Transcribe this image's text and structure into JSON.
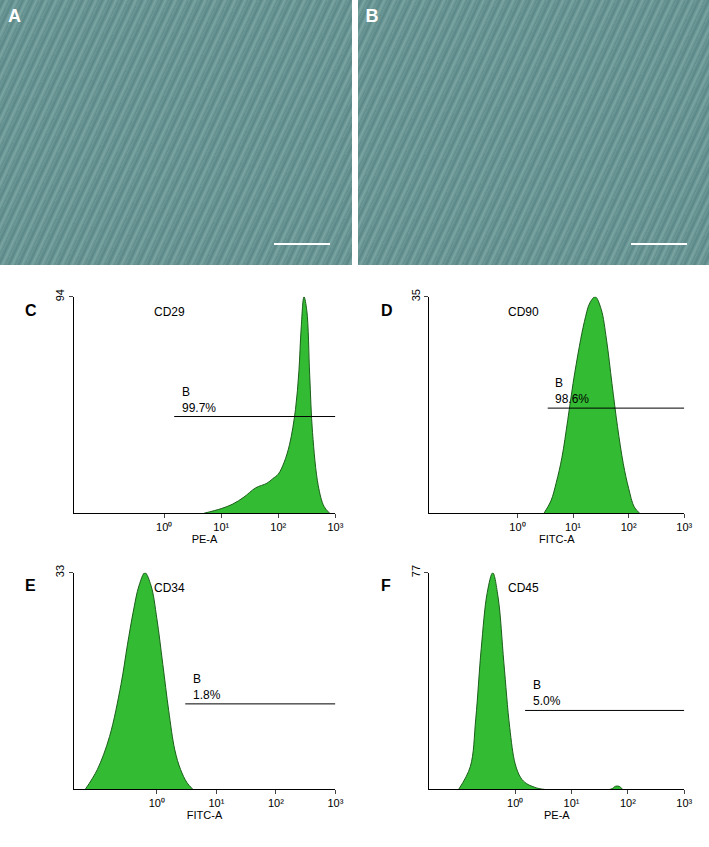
{
  "photos": [
    {
      "panel": "A"
    },
    {
      "panel": "B"
    }
  ],
  "chart_data": [
    {
      "type": "area",
      "panel": "C",
      "title": "CD29",
      "x_label": "PE-A",
      "color": "#33bb33",
      "x": [
        5,
        10,
        16,
        25,
        40,
        63,
        80,
        100,
        126,
        158,
        200,
        230,
        251,
        282,
        316,
        355,
        398,
        501,
        631,
        794
      ],
      "values": [
        0,
        2,
        4,
        7,
        11,
        13,
        15,
        17,
        22,
        30,
        45,
        62,
        80,
        94,
        88,
        60,
        35,
        12,
        3,
        0
      ],
      "xlim": [
        0.026,
        1000
      ],
      "ylim": [
        0,
        94
      ],
      "log": "x",
      "xticks": [
        {
          "value": 1,
          "label": "10⁰"
        },
        {
          "value": 10,
          "label": "10¹"
        },
        {
          "value": 100,
          "label": "10²"
        },
        {
          "value": 1000,
          "label": "10³"
        }
      ],
      "yticks": [
        94
      ],
      "gate": {
        "name": "B",
        "label": "99.7%",
        "x": [
          1.5,
          1000
        ],
        "y": 42
      }
    },
    {
      "type": "area",
      "panel": "D",
      "title": "CD90",
      "x_label": "FITC-A",
      "color": "#33bb33",
      "x": [
        3,
        4,
        5,
        6.3,
        8,
        10,
        13,
        16,
        20,
        25,
        32,
        40,
        50,
        63,
        80,
        100,
        126,
        158
      ],
      "values": [
        0,
        2,
        5,
        9,
        15,
        21,
        27,
        31,
        34,
        35,
        33,
        28,
        21,
        14,
        8,
        4,
        1,
        0
      ],
      "xlim": [
        0.026,
        1000
      ],
      "ylim": [
        0,
        35
      ],
      "log": "x",
      "xticks": [
        {
          "value": 1,
          "label": "10⁰"
        },
        {
          "value": 10,
          "label": "10¹"
        },
        {
          "value": 100,
          "label": "10²"
        },
        {
          "value": 1000,
          "label": "10³"
        }
      ],
      "yticks": [
        35
      ],
      "gate": {
        "name": "B",
        "label": "98.6%",
        "x": [
          3.5,
          1000
        ],
        "y": 17
      }
    },
    {
      "type": "area",
      "panel": "E",
      "title": "CD34",
      "x_label": "FITC-A",
      "color": "#33bb33",
      "x": [
        0.063,
        0.1,
        0.16,
        0.25,
        0.32,
        0.4,
        0.5,
        0.63,
        0.8,
        1,
        1.26,
        1.58,
        2,
        2.5,
        3.2,
        4
      ],
      "values": [
        0,
        3,
        8,
        16,
        22,
        27,
        31,
        33,
        31,
        26,
        19,
        12,
        6,
        3,
        1,
        0
      ],
      "xlim": [
        0.04,
        1000
      ],
      "ylim": [
        0,
        33
      ],
      "log": "x",
      "xticks": [
        {
          "value": 1,
          "label": "10⁰"
        },
        {
          "value": 10,
          "label": "10¹"
        },
        {
          "value": 100,
          "label": "10²"
        },
        {
          "value": 1000,
          "label": "10³"
        }
      ],
      "yticks": [
        33
      ],
      "gate": {
        "name": "B",
        "label": "1.8%",
        "x": [
          3,
          1000
        ],
        "y": 13
      }
    },
    {
      "type": "area",
      "panel": "F",
      "title": "CD45",
      "x_label": "PE-A",
      "color": "#33bb33",
      "x": [
        0.1,
        0.16,
        0.2,
        0.25,
        0.32,
        0.4,
        0.5,
        0.63,
        0.8,
        1,
        1.26,
        1.58,
        2,
        3,
        50,
        60,
        70,
        80
      ],
      "values": [
        0,
        8,
        25,
        50,
        70,
        77,
        68,
        45,
        22,
        9,
        4,
        2,
        1,
        0,
        0,
        1,
        1,
        0
      ],
      "xlim": [
        0.03,
        1000
      ],
      "ylim": [
        0,
        77
      ],
      "log": "x",
      "xticks": [
        {
          "value": 1,
          "label": "10⁰"
        },
        {
          "value": 10,
          "label": "10¹"
        },
        {
          "value": 100,
          "label": "10²"
        },
        {
          "value": 1000,
          "label": "10³"
        }
      ],
      "yticks": [
        77
      ],
      "gate": {
        "name": "B",
        "label": "5.0%",
        "x": [
          1.5,
          1000
        ],
        "y": 28
      }
    }
  ]
}
